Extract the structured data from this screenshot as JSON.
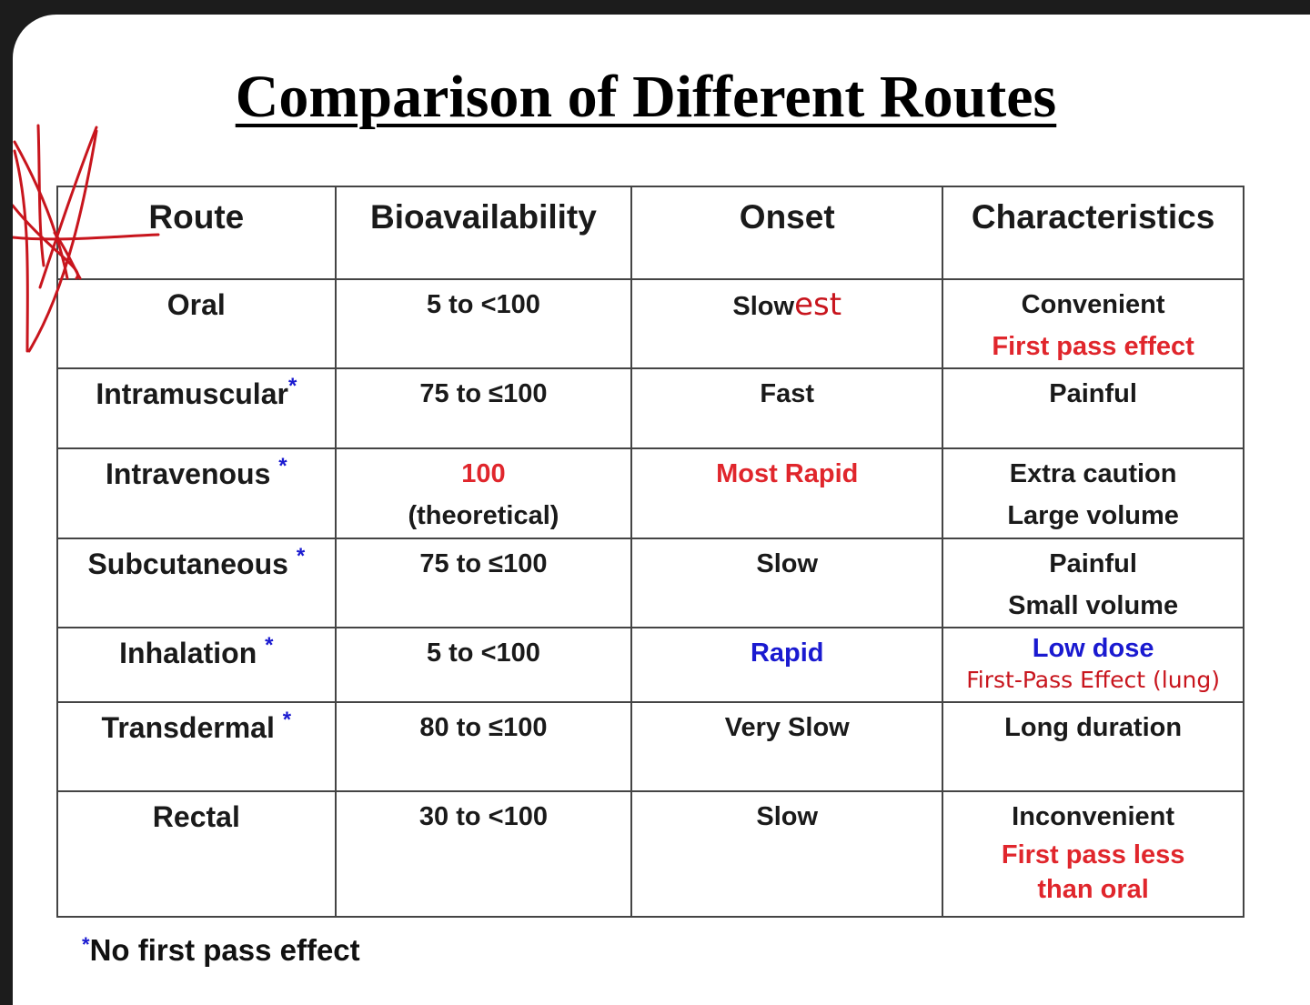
{
  "title": "Comparison of Different Routes",
  "headers": {
    "route": "Route",
    "bioavailability": "Bioavailability",
    "onset": "Onset",
    "characteristics": "Characteristics"
  },
  "rows": [
    {
      "route": "Oral",
      "star": "",
      "bio_line1": "5 to <100",
      "bio_line2": "",
      "onset_prefix": "Slow",
      "onset_handwritten": "est",
      "char_line1": "Convenient",
      "char_line2": "First pass effect"
    },
    {
      "route": "Intramuscular",
      "star": "*",
      "bio_line1": "75 to ≤100",
      "bio_line2": "",
      "onset_prefix": "Fast",
      "onset_handwritten": "",
      "char_line1": "Painful",
      "char_line2": ""
    },
    {
      "route": "Intravenous",
      "star": "*",
      "bio_line1": "100",
      "bio_line2": "(theoretical)",
      "onset_prefix": "Most Rapid",
      "onset_handwritten": "",
      "char_line1": "Extra caution",
      "char_line2": "Large volume"
    },
    {
      "route": "Subcutaneous",
      "star": "*",
      "bio_line1": "75 to ≤100",
      "bio_line2": "",
      "onset_prefix": "Slow",
      "onset_handwritten": "",
      "char_line1": "Painful",
      "char_line2": "Small volume"
    },
    {
      "route": "Inhalation",
      "star": "*",
      "bio_line1": "5 to <100",
      "bio_line2": "",
      "onset_prefix": "Rapid",
      "onset_handwritten": "",
      "char_line1": "Low dose",
      "char_line2": "First-Pass Effect (lung)"
    },
    {
      "route": "Transdermal",
      "star": "*",
      "bio_line1": "80 to ≤100",
      "bio_line2": "",
      "onset_prefix": "Very Slow",
      "onset_handwritten": "",
      "char_line1": "Long duration",
      "char_line2": ""
    },
    {
      "route": "Rectal",
      "star": "",
      "bio_line1": "30 to <100",
      "bio_line2": "",
      "onset_prefix": "Slow",
      "onset_handwritten": "",
      "char_line1": "Inconvenient",
      "char_line2": "First pass less",
      "char_line3": "than oral"
    }
  ],
  "footnote": {
    "star": "*",
    "text": "No first pass effect"
  },
  "colors": {
    "red": "#e0262c",
    "blue": "#1a1ad0",
    "ink": "#c8151d"
  }
}
